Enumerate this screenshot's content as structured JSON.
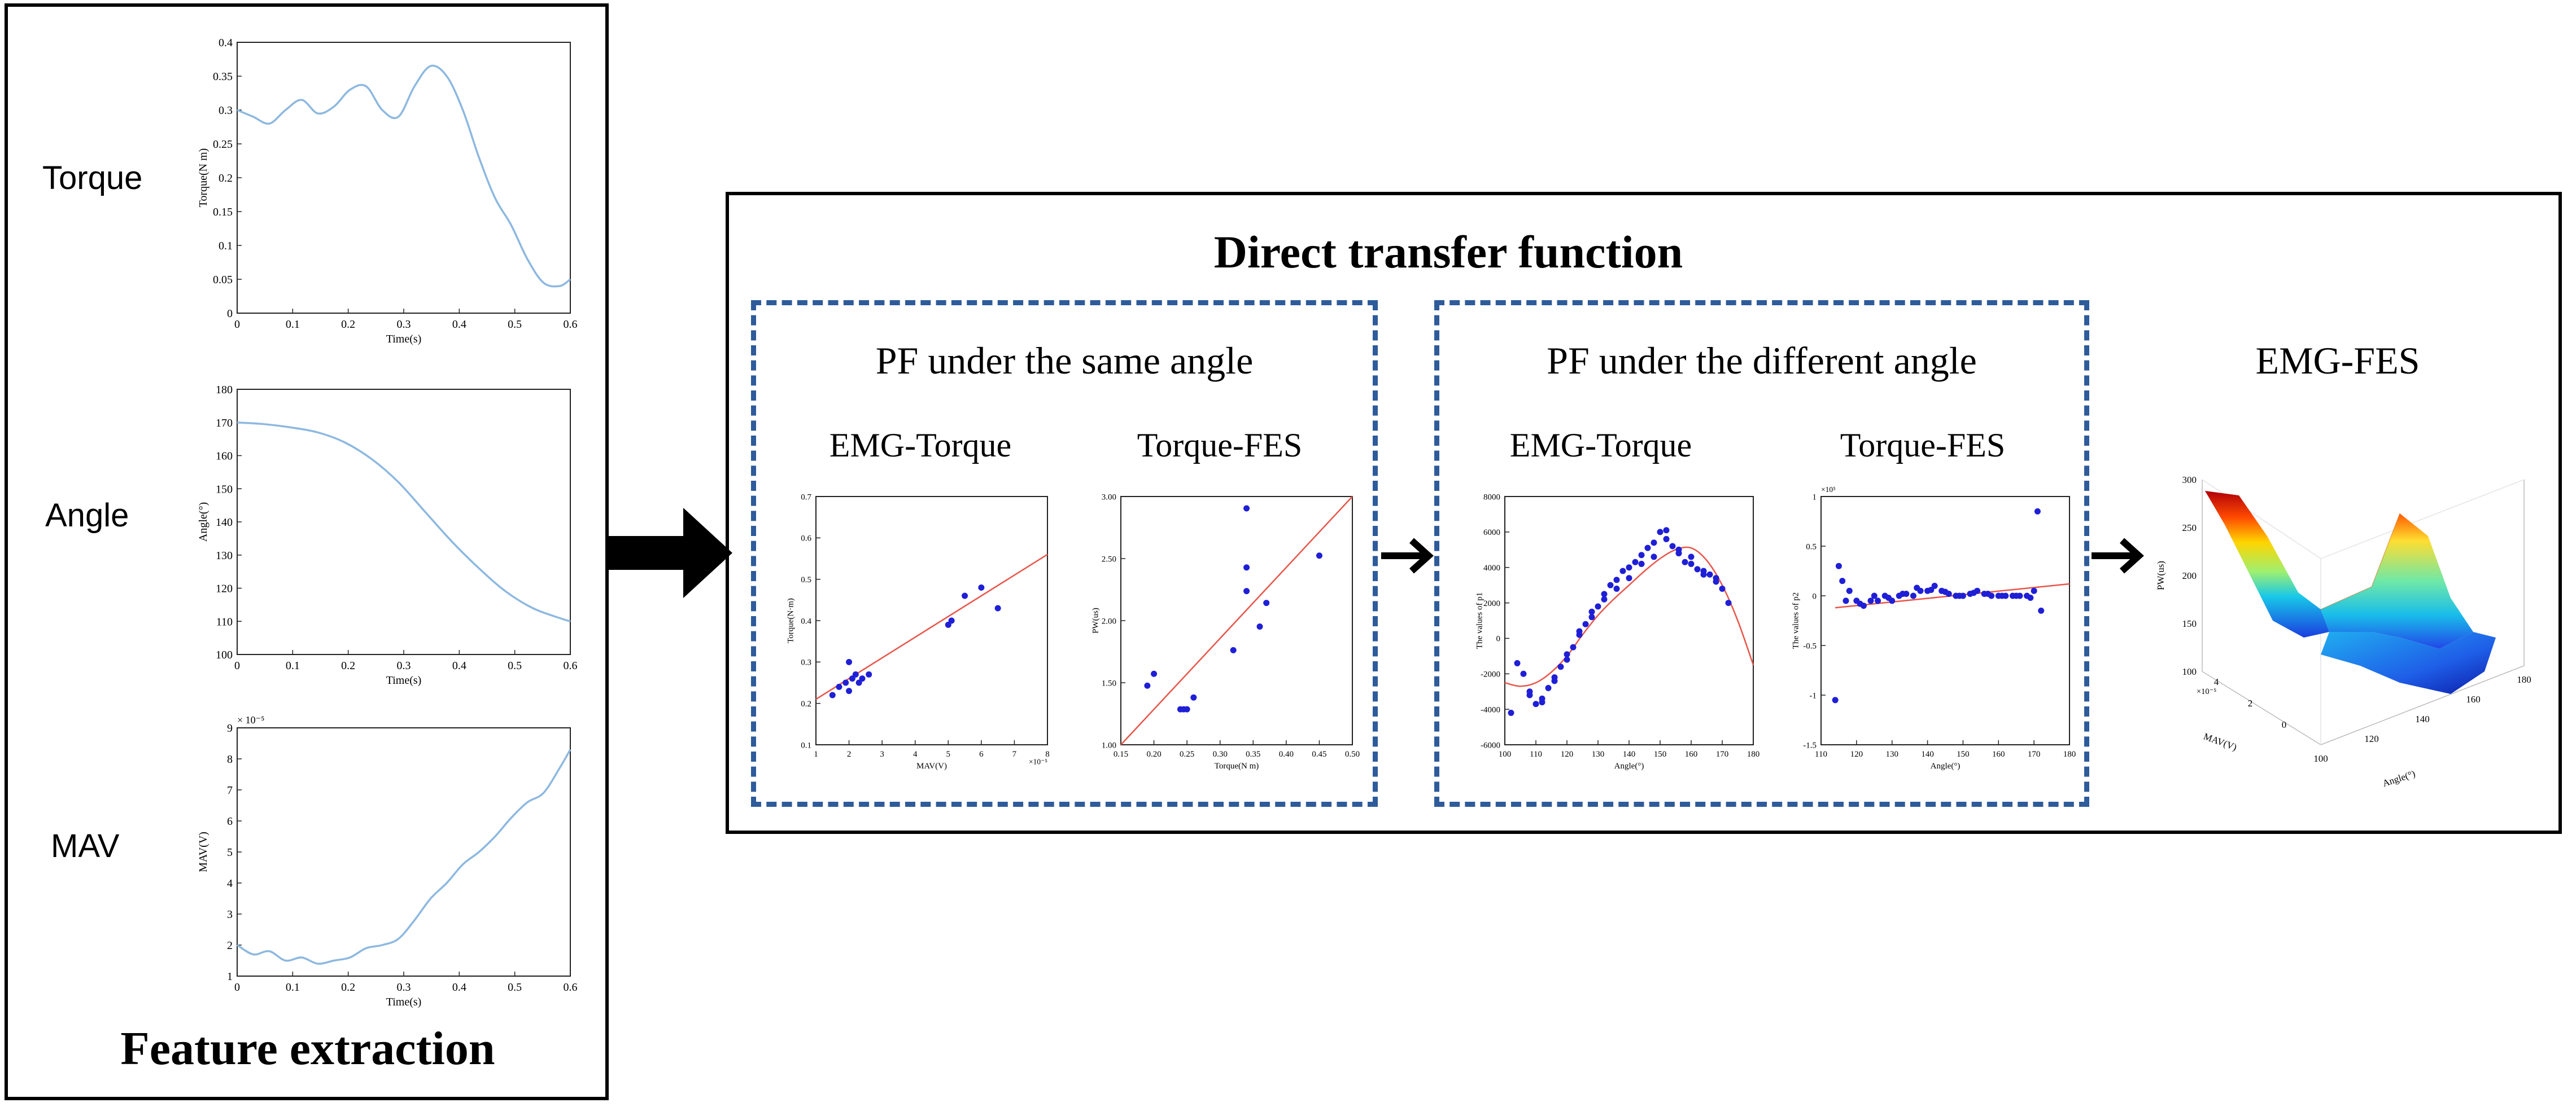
{
  "feature_panel": {
    "title": "Feature extraction",
    "labels": [
      "Torque",
      "Angle",
      "MAV"
    ]
  },
  "transfer_panel": {
    "title": "Direct transfer function",
    "same_angle": {
      "title": "PF under the same angle",
      "left_title": "EMG-Torque",
      "right_title": "Torque-FES"
    },
    "different_angle": {
      "title": "PF under the different angle",
      "left_title": "EMG-Torque",
      "right_title": "Torque-FES"
    },
    "emg_fes_title": "EMG-FES"
  },
  "colors": {
    "curve": "#8db8e0",
    "points": "#1f1fd6",
    "fit": "#e8554a",
    "dashed_border": "#2e5b9a"
  },
  "chart_data": [
    {
      "id": "torque",
      "type": "line",
      "ylabel": "Torque(N m)",
      "xlabel": "Time(s)",
      "xlim": [
        0,
        0.62
      ],
      "ylim": [
        0,
        0.4
      ],
      "xticks": [
        "0",
        "0.1",
        "0.2",
        "0.3",
        "0.4",
        "0.5",
        "0.6"
      ],
      "yticks": [
        "0",
        "0.05",
        "0.1",
        "0.15",
        "0.2",
        "0.25",
        "0.3",
        "0.35",
        "0.4"
      ],
      "x": [
        0,
        0.03,
        0.06,
        0.09,
        0.12,
        0.15,
        0.18,
        0.21,
        0.24,
        0.27,
        0.3,
        0.33,
        0.36,
        0.39,
        0.42,
        0.45,
        0.48,
        0.51,
        0.54,
        0.57,
        0.6,
        0.62
      ],
      "y": [
        0.3,
        0.29,
        0.28,
        0.3,
        0.315,
        0.295,
        0.305,
        0.33,
        0.335,
        0.3,
        0.29,
        0.335,
        0.365,
        0.35,
        0.3,
        0.23,
        0.17,
        0.13,
        0.08,
        0.045,
        0.04,
        0.05
      ]
    },
    {
      "id": "angle",
      "type": "line",
      "ylabel": "Angle(°)",
      "xlabel": "Time(s)",
      "xlim": [
        0,
        0.62
      ],
      "ylim": [
        100,
        180
      ],
      "xticks": [
        "0",
        "0.1",
        "0.2",
        "0.3",
        "0.4",
        "0.5",
        "0.6"
      ],
      "yticks": [
        "100",
        "110",
        "120",
        "130",
        "140",
        "150",
        "160",
        "170",
        "180"
      ],
      "x": [
        0,
        0.05,
        0.1,
        0.15,
        0.2,
        0.25,
        0.3,
        0.35,
        0.4,
        0.45,
        0.5,
        0.55,
        0.6,
        0.62
      ],
      "y": [
        170,
        169.5,
        168.5,
        167,
        164,
        159,
        152,
        143,
        134,
        126,
        119,
        114,
        111,
        110
      ]
    },
    {
      "id": "mav",
      "type": "line",
      "ylabel": "MAV(V)",
      "xlabel": "Time(s)",
      "multiplier": "× 10⁻⁵",
      "xlim": [
        0,
        0.62
      ],
      "ylim": [
        1,
        9
      ],
      "xticks": [
        "0",
        "0.1",
        "0.2",
        "0.3",
        "0.4",
        "0.5",
        "0.6"
      ],
      "yticks": [
        "1",
        "2",
        "3",
        "4",
        "5",
        "6",
        "7",
        "8",
        "9"
      ],
      "x": [
        0,
        0.03,
        0.06,
        0.09,
        0.12,
        0.15,
        0.18,
        0.21,
        0.24,
        0.27,
        0.3,
        0.33,
        0.36,
        0.39,
        0.42,
        0.45,
        0.48,
        0.51,
        0.54,
        0.57,
        0.6,
        0.62
      ],
      "y": [
        2.0,
        1.7,
        1.8,
        1.5,
        1.6,
        1.4,
        1.5,
        1.6,
        1.9,
        2.0,
        2.2,
        2.8,
        3.5,
        4.0,
        4.6,
        5.0,
        5.5,
        6.1,
        6.6,
        6.9,
        7.7,
        8.3
      ]
    },
    {
      "id": "same_emg_torque",
      "type": "scatter",
      "ylabel": "Torque(N·m)",
      "xlabel": "MAV(V)",
      "multiplier": "×10⁻⁵",
      "xlim": [
        1,
        8
      ],
      "ylim": [
        0.1,
        0.7
      ],
      "xticks": [
        "1",
        "2",
        "3",
        "4",
        "5",
        "6",
        "7",
        "8"
      ],
      "yticks": [
        "0.1",
        "0.2",
        "0.3",
        "0.4",
        "0.5",
        "0.6",
        "0.7"
      ],
      "points_x": [
        1.5,
        1.7,
        1.9,
        2.0,
        2.1,
        2.2,
        2.3,
        2.0,
        2.4,
        2.6,
        5.0,
        5.1,
        5.5,
        6.0,
        6.5
      ],
      "points_y": [
        0.22,
        0.24,
        0.25,
        0.23,
        0.26,
        0.27,
        0.25,
        0.3,
        0.26,
        0.27,
        0.39,
        0.4,
        0.46,
        0.48,
        0.43
      ],
      "fit": [
        [
          1.0,
          0.21
        ],
        [
          8.0,
          0.56
        ]
      ]
    },
    {
      "id": "same_torque_fes",
      "type": "scatter",
      "ylabel": "PW(us)",
      "xlabel": "Torque(N m)",
      "xlim": [
        0.15,
        0.5
      ],
      "ylim": [
        100,
        310
      ],
      "xticks": [
        "0.15",
        "0.20",
        "0.25",
        "0.30",
        "0.35",
        "0.40",
        "0.45",
        "0.50"
      ],
      "yticks": [
        "1.00",
        "1.50",
        "2.00",
        "2.50",
        "3.00"
      ],
      "points_x": [
        0.19,
        0.2,
        0.24,
        0.245,
        0.25,
        0.26,
        0.32,
        0.34,
        0.34,
        0.34,
        0.36,
        0.37,
        0.45
      ],
      "points_y": [
        150,
        160,
        130,
        130,
        130,
        140,
        180,
        300,
        250,
        230,
        200,
        220,
        260
      ],
      "fit": [
        [
          0.15,
          100
        ],
        [
          0.5,
          310
        ]
      ]
    },
    {
      "id": "diff_emg_torque",
      "type": "scatter",
      "ylabel": "The values of p1",
      "xlabel": "Angle(°)",
      "xlim": [
        100,
        180
      ],
      "ylim": [
        -6000,
        8000
      ],
      "xticks": [
        "100",
        "110",
        "120",
        "130",
        "140",
        "150",
        "160",
        "170",
        "180"
      ],
      "yticks": [
        "-6000",
        "-4000",
        "-2000",
        "0",
        "2000",
        "4000",
        "6000",
        "8000"
      ],
      "points_x": [
        102,
        104,
        106,
        108,
        110,
        112,
        114,
        116,
        118,
        120,
        122,
        124,
        126,
        128,
        130,
        132,
        134,
        136,
        138,
        140,
        142,
        144,
        146,
        148,
        150,
        152,
        154,
        156,
        158,
        160,
        162,
        164,
        166,
        168,
        170,
        172,
        108,
        112,
        116,
        120,
        124,
        128,
        132,
        136,
        140,
        144,
        148,
        152,
        156,
        160,
        164,
        168
      ],
      "points_y": [
        -4200,
        -1400,
        -2000,
        -3200,
        -3700,
        -3400,
        -2800,
        -2200,
        -1600,
        -900,
        -500,
        200,
        800,
        1500,
        1800,
        2500,
        3000,
        3300,
        3800,
        4000,
        4300,
        4700,
        5100,
        5400,
        6000,
        6100,
        5200,
        4800,
        4300,
        4200,
        3900,
        3600,
        3600,
        3200,
        2800,
        2000,
        -3000,
        -3600,
        -2400,
        -1200,
        400,
        1200,
        2200,
        2800,
        3400,
        4200,
        4600,
        5600,
        5000,
        4600,
        3800,
        3400
      ],
      "fit_x": [
        100,
        105,
        110,
        115,
        120,
        125,
        130,
        135,
        140,
        145,
        150,
        155,
        160,
        165,
        170,
        175,
        180
      ],
      "fit_y": [
        -2500,
        -2700,
        -2500,
        -1900,
        -1000,
        200,
        1300,
        2200,
        3000,
        3800,
        4500,
        5000,
        5100,
        4400,
        3000,
        1000,
        -1500
      ]
    },
    {
      "id": "diff_torque_fes",
      "type": "scatter",
      "ylabel": "The values of p2",
      "xlabel": "Angle(°)",
      "multiplier": "×10⁵",
      "xlim": [
        110,
        180
      ],
      "ylim": [
        -1.5,
        1
      ],
      "xticks": [
        "110",
        "120",
        "130",
        "140",
        "150",
        "160",
        "170",
        "180"
      ],
      "yticks": [
        "-1.5",
        "-1",
        "-0.5",
        "0",
        "0.5",
        "1"
      ],
      "points_x": [
        114,
        115,
        116,
        118,
        120,
        122,
        124,
        126,
        128,
        130,
        132,
        134,
        136,
        138,
        140,
        142,
        144,
        146,
        148,
        150,
        152,
        154,
        156,
        158,
        160,
        162,
        164,
        166,
        168,
        170,
        171,
        172,
        117,
        121,
        125,
        129,
        133,
        137,
        141,
        145,
        149,
        153,
        157,
        161,
        165,
        169
      ],
      "points_y": [
        -1.05,
        0.3,
        0.15,
        0.05,
        -0.05,
        -0.1,
        -0.05,
        -0.05,
        0.0,
        -0.05,
        0.0,
        0.02,
        0.0,
        0.05,
        0.05,
        0.1,
        0.05,
        0.02,
        0.0,
        0.0,
        0.02,
        0.05,
        0.02,
        0.0,
        0.0,
        0.0,
        0.0,
        0.0,
        0.0,
        0.05,
        0.85,
        -0.15,
        -0.05,
        -0.08,
        0.0,
        -0.02,
        0.02,
        0.08,
        0.06,
        0.04,
        0.0,
        0.03,
        0.02,
        0.0,
        0.0,
        -0.02
      ],
      "fit": [
        [
          114,
          -0.12
        ],
        [
          180,
          0.12
        ]
      ]
    },
    {
      "id": "emg_fes_surface",
      "type": "surface",
      "zlabel": "PW(us)",
      "xlabel": "MAV(V)",
      "ylabel": "Angle(°)",
      "multiplier": "×10⁻⁵",
      "zticks": [
        "100",
        "150",
        "200",
        "250",
        "300"
      ],
      "xticks": [
        "0",
        "2",
        "4"
      ],
      "yticks": [
        "100",
        "120",
        "140",
        "160",
        "180"
      ]
    }
  ]
}
